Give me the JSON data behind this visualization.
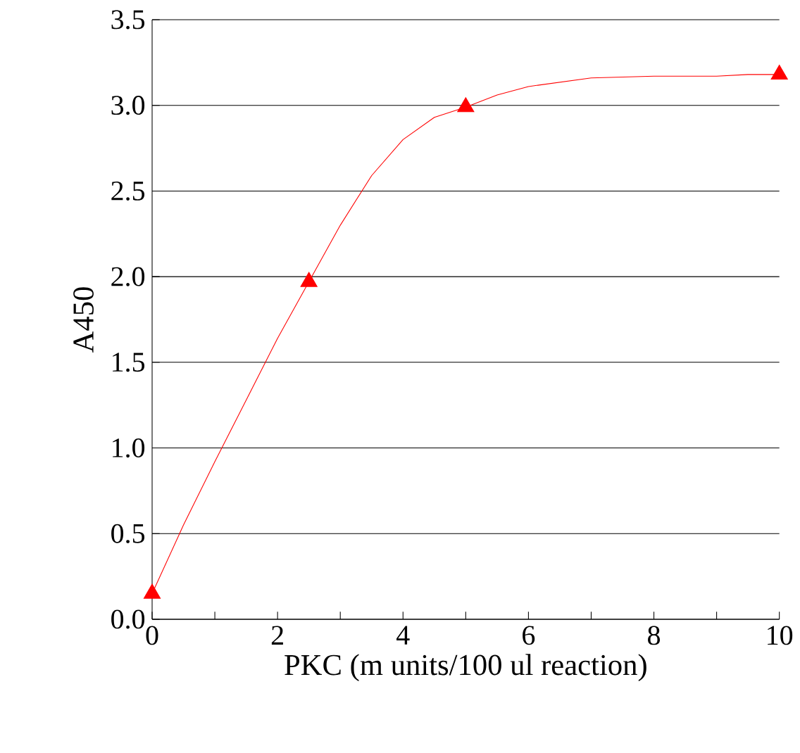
{
  "chart_data": {
    "type": "line",
    "xlabel": "PKC (m units/100 ul reaction)",
    "ylabel": "A450",
    "xlim": [
      0,
      10
    ],
    "ylim": [
      0,
      3.5
    ],
    "xticks": [
      0,
      {
        "value": 1,
        "label": null
      },
      2,
      {
        "value": 3,
        "label": null
      },
      4,
      {
        "value": 5,
        "label": null
      },
      6,
      {
        "value": 7,
        "label": null
      },
      8,
      {
        "value": 9,
        "label": null
      },
      10
    ],
    "yticks": [
      {
        "value": 0,
        "label": "0.0"
      },
      {
        "value": 0.5,
        "label": "0.5"
      },
      {
        "value": 1,
        "label": "1.0"
      },
      {
        "value": 1.5,
        "label": "1.5"
      },
      {
        "value": 2,
        "label": "2.0"
      },
      {
        "value": 2.5,
        "label": "2.5"
      },
      {
        "value": 3,
        "label": "3.0"
      },
      {
        "value": 3.5,
        "label": "3.5"
      }
    ],
    "grid": "y",
    "line_style": "solid",
    "series": [
      {
        "color": "#ff0000",
        "marker": "none",
        "x": [
          0,
          0.5,
          1,
          1.5,
          2,
          2.5,
          3,
          3.5,
          4,
          4.5,
          5,
          5.5,
          6,
          7,
          8,
          9,
          9.5,
          10
        ],
        "values": [
          0.15,
          0.55,
          0.92,
          1.28,
          1.64,
          1.97,
          2.3,
          2.59,
          2.8,
          2.93,
          2.99,
          3.06,
          3.11,
          3.16,
          3.17,
          3.17,
          3.18,
          3.18
        ]
      },
      {
        "type": "scatter",
        "color": "#ff0000",
        "marker": "triangle",
        "x": [
          0,
          2.5,
          5,
          10
        ],
        "values": [
          0.15,
          1.97,
          2.99,
          3.18
        ]
      }
    ]
  }
}
